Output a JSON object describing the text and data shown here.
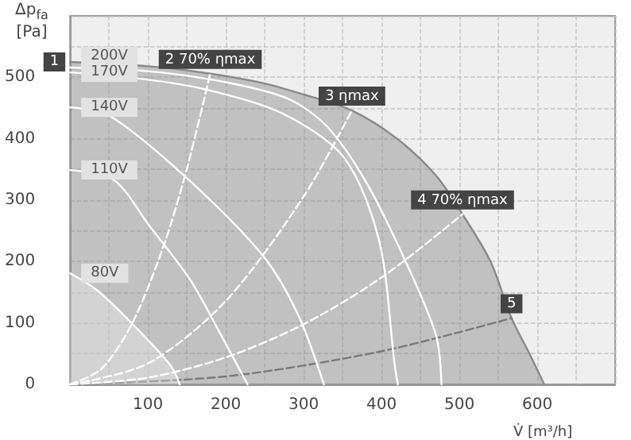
{
  "chart_data": {
    "type": "line",
    "xlabel": "V̇ [m³/h]",
    "ylabel": "Δp$_{fa}$ [Pa]",
    "xlim": [
      0,
      700
    ],
    "ylim": [
      0,
      600
    ],
    "xticks": [
      {
        "value": 0,
        "label": null
      },
      {
        "value": 50,
        "label": null
      },
      100,
      {
        "value": 150,
        "label": null
      },
      200,
      {
        "value": 250,
        "label": null
      },
      300,
      {
        "value": 350,
        "label": null
      },
      400,
      {
        "value": 450,
        "label": null
      },
      500,
      {
        "value": 550,
        "label": null
      },
      600,
      {
        "value": 650,
        "label": null
      },
      {
        "value": 700,
        "label": null
      }
    ],
    "yticks": [
      0,
      {
        "value": 50,
        "label": null
      },
      100,
      {
        "value": 150,
        "label": null
      },
      200,
      {
        "value": 250,
        "label": null
      },
      300,
      {
        "value": 350,
        "label": null
      },
      400,
      {
        "value": 450,
        "label": null
      },
      500,
      {
        "value": 550,
        "label": null
      },
      {
        "value": 600,
        "label": null
      }
    ],
    "grid": true,
    "legend": false,
    "marker": "none",
    "series": [
      {
        "type": "area",
        "color": "#8a8a8a",
        "line_style": "solid",
        "x": [
          0,
          100,
          180,
          250,
          300,
          362,
          420,
          470,
          504,
          540,
          567,
          590,
          609
        ],
        "values": [
          525,
          518,
          506,
          490,
          472,
          446,
          400,
          340,
          277,
          200,
          108,
          50,
          0
        ]
      },
      {
        "type": "line",
        "color": "#7a7a7a",
        "line_style": "dashed",
        "x": [
          0,
          200,
          400,
          567
        ],
        "values": [
          0,
          13,
          54,
          108
        ]
      },
      {
        "type": "line",
        "color": "#ffffff",
        "line_style": "dashed",
        "x": [
          0,
          40,
          80,
          120,
          150,
          180
        ],
        "values": [
          0,
          25,
          100,
          225,
          351,
          506
        ]
      },
      {
        "type": "line",
        "color": "#ffffff",
        "line_style": "dashed",
        "x": [
          0,
          100,
          200,
          300,
          362
        ],
        "values": [
          0,
          34,
          136,
          306,
          446
        ]
      },
      {
        "type": "line",
        "color": "#ffffff",
        "line_style": "dashed",
        "x": [
          0,
          100,
          200,
          300,
          400,
          504
        ],
        "values": [
          0,
          11,
          44,
          98,
          174,
          277
        ]
      },
      {
        "name": "200V",
        "type": "line",
        "color": "#ffffff",
        "line_style": "solid",
        "x": [
          0,
          100,
          200,
          280,
          330,
          380,
          431,
          470,
          477
        ],
        "values": [
          516,
          510,
          492,
          465,
          420,
          330,
          200,
          80,
          0
        ]
      },
      {
        "name": "170V",
        "type": "line",
        "color": "#ffffff",
        "line_style": "solid",
        "x": [
          0,
          100,
          175,
          273,
          352,
          397,
          417,
          421
        ],
        "values": [
          508,
          496,
          480,
          441,
          369,
          234,
          31,
          0
        ]
      },
      {
        "name": "140V",
        "type": "line",
        "color": "#ffffff",
        "line_style": "solid",
        "x": [
          0,
          50,
          149,
          248,
          293,
          326
        ],
        "values": [
          451,
          438,
          337,
          209,
          113,
          0
        ]
      },
      {
        "name": "110V",
        "type": "line",
        "color": "#ffffff",
        "line_style": "solid",
        "x": [
          0,
          56,
          102,
          155,
          194,
          228
        ],
        "values": [
          349,
          333,
          258,
          169,
          80,
          0
        ]
      },
      {
        "name": "80V",
        "type": "area",
        "color": "#ffffff",
        "line_style": "solid",
        "x": [
          0,
          36,
          82,
          129,
          141
        ],
        "values": [
          181,
          152,
          96,
          31,
          0
        ]
      }
    ],
    "annotations": [
      {
        "text": "1",
        "x": 0,
        "y": 525
      },
      {
        "text": "2 70% ηmax",
        "x": 180,
        "y": 506
      },
      {
        "text": "3 ηmax",
        "x": 362,
        "y": 446
      },
      {
        "text": "4 70% ηmax",
        "x": 504,
        "y": 277
      },
      {
        "text": "5",
        "x": 567,
        "y": 108
      }
    ]
  }
}
